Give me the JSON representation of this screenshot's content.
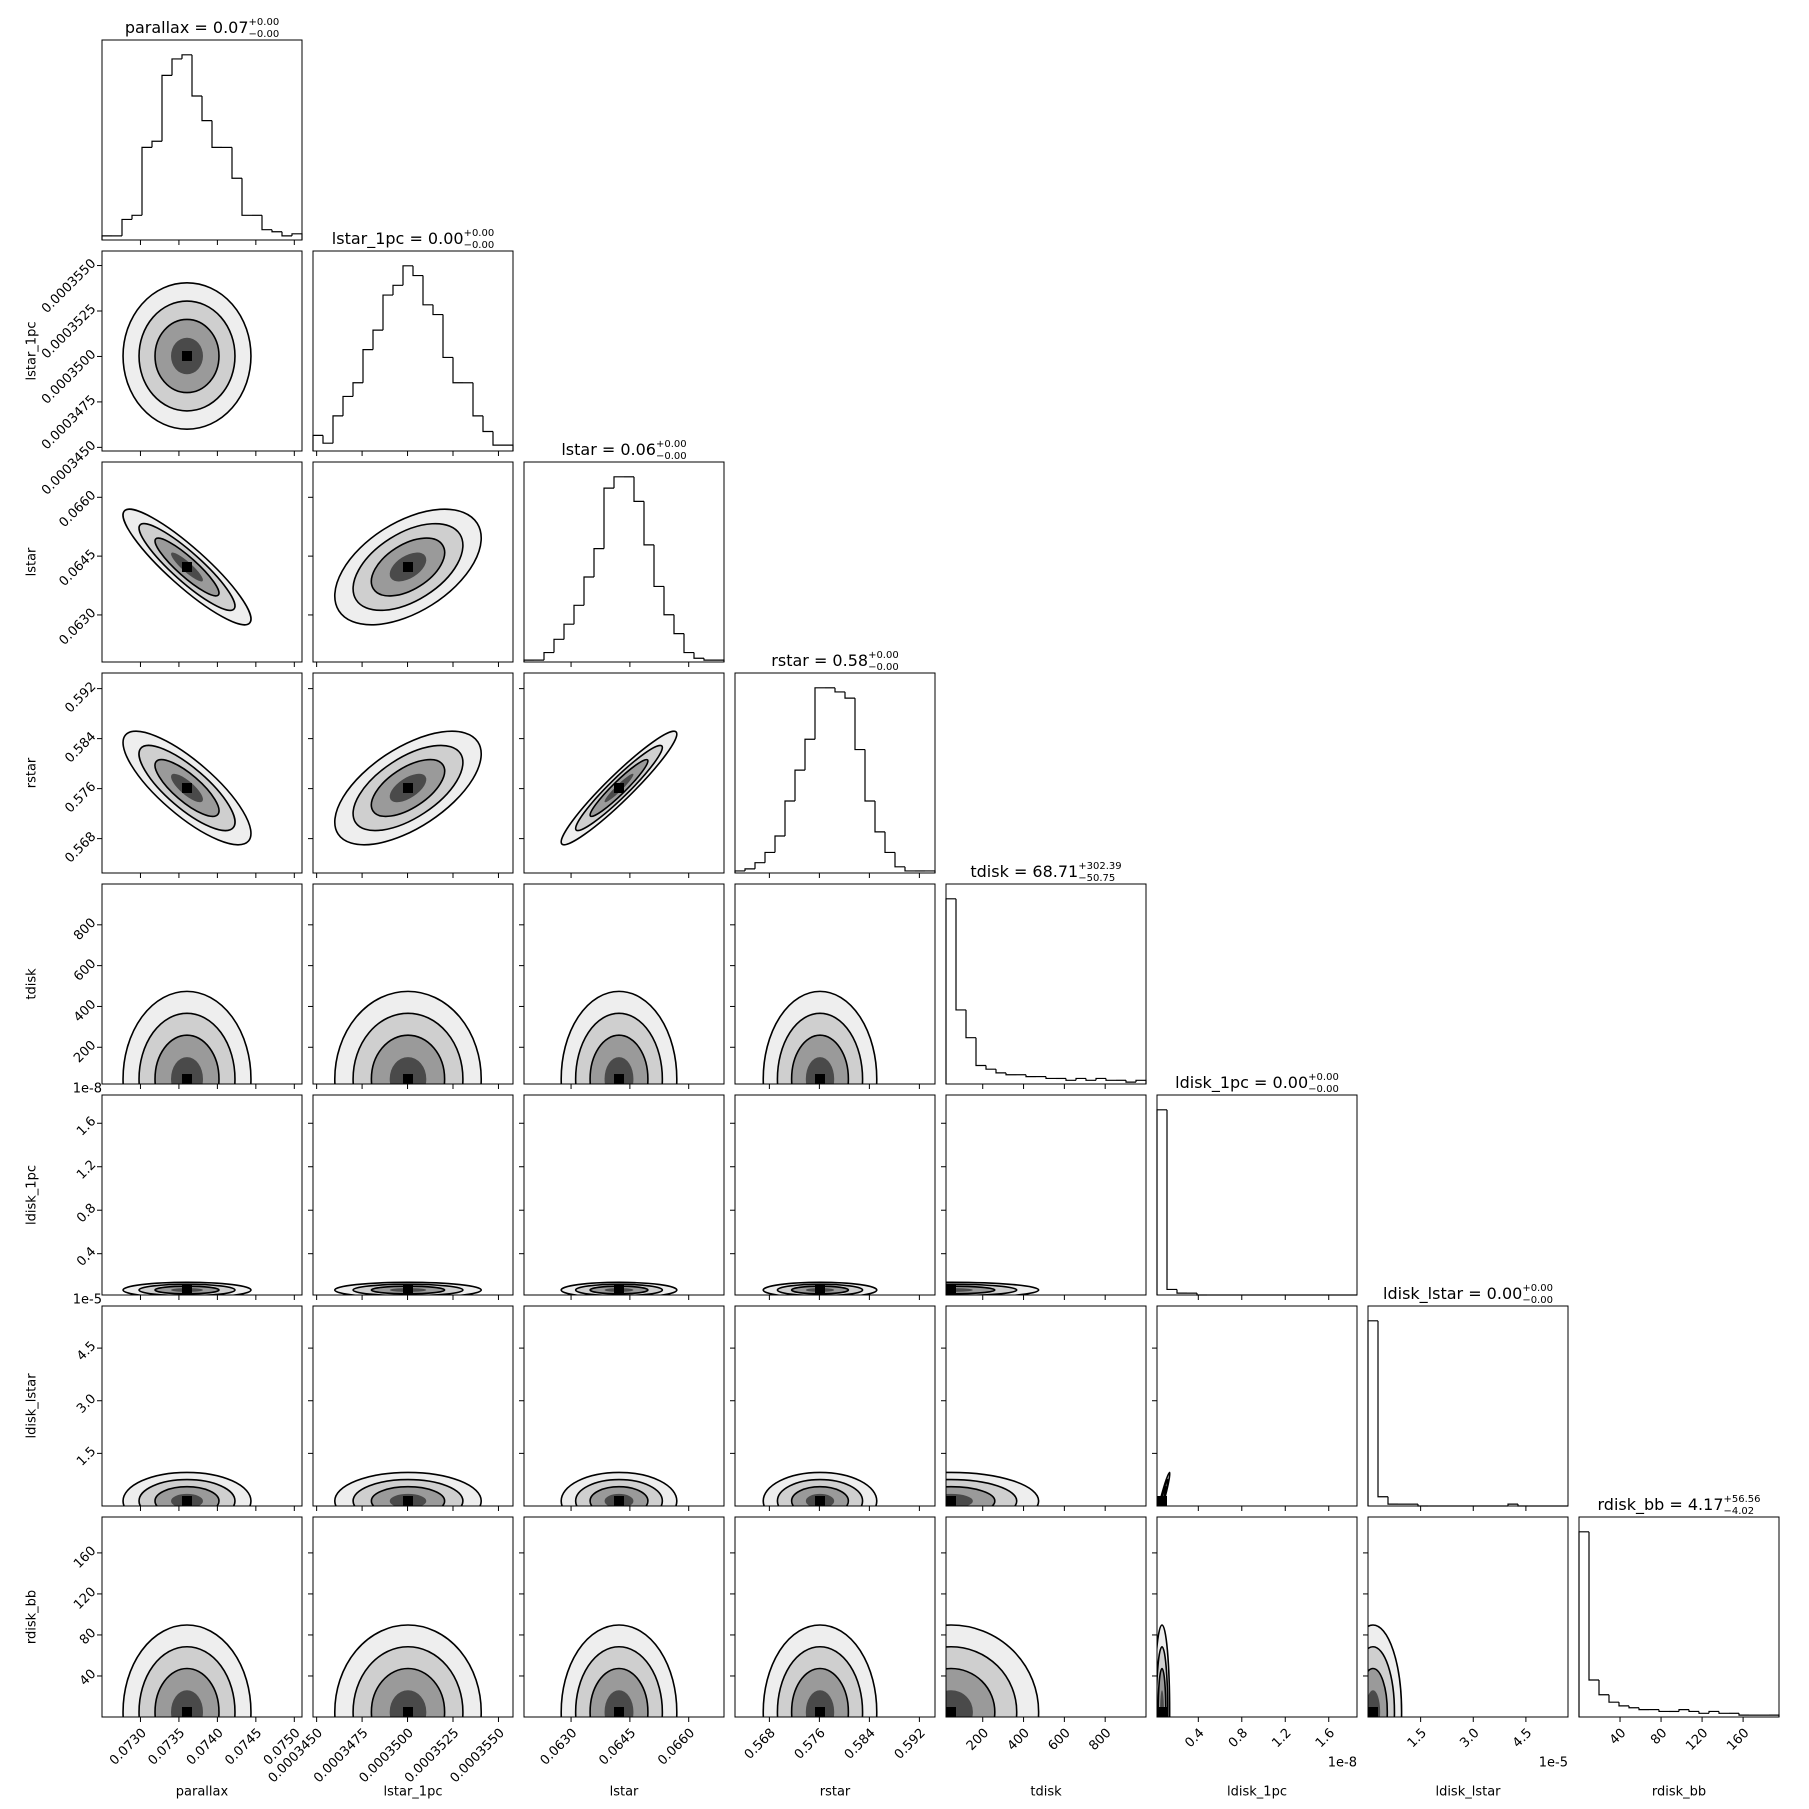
{
  "chart_data": {
    "type": "corner",
    "parameters": [
      {
        "label": "parallax",
        "title": "parallax = 0.07",
        "title_plus": "+0.00",
        "title_minus": "−0.00",
        "lim": [
          0.0725,
          0.0751
        ],
        "ticks": [
          {
            "value": 0.073,
            "label": "0.0730"
          },
          0.0735,
          {
            "value": 0.074,
            "label": "0.0740"
          },
          0.0745,
          {
            "value": 0.075,
            "label": "0.0750"
          }
        ],
        "bins": [
          0.0725,
          0.07263,
          0.07276,
          0.07289,
          0.07302,
          0.07315,
          0.07328,
          0.07341,
          0.07354,
          0.07367,
          0.0738,
          0.07393,
          0.07406,
          0.07419,
          0.07432,
          0.07445,
          0.07458,
          0.07471,
          0.07484,
          0.07497,
          0.0751
        ],
        "counts": [
          2,
          2,
          10,
          12,
          45,
          48,
          80,
          88,
          90,
          70,
          58,
          45,
          45,
          30,
          12,
          12,
          5,
          4,
          2,
          3
        ]
      },
      {
        "label": "lstar_1pc",
        "title": "lstar_1pc = 0.00",
        "title_plus": "+0.00",
        "title_minus": "−0.00",
        "lim": [
          0.0003448,
          0.0003558
        ],
        "ticks": [
          {
            "value": 0.000345,
            "label": "0.0003450"
          },
          0.0003475,
          {
            "value": 0.00035,
            "label": "0.0003500"
          },
          0.0003525,
          {
            "value": 0.000355,
            "label": "0.0003550"
          }
        ],
        "bins": [
          0.0003448,
          0.00034535,
          0.0003459,
          0.00034645,
          0.000347,
          0.00034755,
          0.0003481,
          0.00034865,
          0.0003492,
          0.00034975,
          0.0003503,
          0.00035085,
          0.0003514,
          0.00035195,
          0.0003525,
          0.00035305,
          0.0003536,
          0.00035415,
          0.0003547,
          0.00035525,
          0.0003558
        ],
        "counts": [
          8,
          4,
          18,
          28,
          35,
          52,
          62,
          80,
          85,
          95,
          90,
          75,
          70,
          48,
          35,
          35,
          18,
          10,
          3,
          3
        ]
      },
      {
        "label": "lstar",
        "title": "lstar = 0.06",
        "title_plus": "+0.00",
        "title_minus": "−0.00",
        "lim": [
          0.0618,
          0.0669
        ],
        "ticks": [
          {
            "value": 0.063,
            "label": "0.0630"
          },
          0.0645,
          {
            "value": 0.066,
            "label": "0.0660"
          }
        ],
        "bins": [
          0.0618,
          0.062055,
          0.06231,
          0.062565,
          0.06282,
          0.063075,
          0.06333,
          0.063585,
          0.06384,
          0.064095,
          0.06435,
          0.064605,
          0.06486,
          0.065115,
          0.06537,
          0.065625,
          0.06588,
          0.066135,
          0.06639,
          0.066645,
          0.0669
        ],
        "counts": [
          1,
          1,
          5,
          12,
          20,
          30,
          45,
          60,
          92,
          98,
          98,
          85,
          62,
          40,
          25,
          15,
          5,
          2,
          1,
          1
        ]
      },
      {
        "label": "rstar",
        "title": "rstar = 0.58",
        "title_plus": "+0.00",
        "title_minus": "−0.00",
        "lim": [
          0.5625,
          0.5945
        ],
        "ticks": [
          0.568,
          0.576,
          0.584,
          0.592
        ],
        "bins": [
          0.5625,
          0.5641,
          0.5657,
          0.5673,
          0.5689,
          0.5705,
          0.5721,
          0.5737,
          0.5753,
          0.5769,
          0.5785,
          0.5801,
          0.5817,
          0.5833,
          0.5849,
          0.5865,
          0.5881,
          0.5897,
          0.5913,
          0.5929,
          0.5945
        ],
        "counts": [
          1,
          2,
          5,
          10,
          18,
          35,
          50,
          65,
          90,
          90,
          88,
          85,
          60,
          35,
          20,
          10,
          3,
          1,
          1,
          1
        ]
      },
      {
        "label": "tdisk",
        "title": "tdisk = 68.71",
        "title_plus": "+302.39",
        "title_minus": "−50.75",
        "lim": [
          20,
          1000
        ],
        "ticks": [
          200,
          400,
          600,
          800
        ],
        "bins": [
          20,
          69,
          118,
          167,
          216,
          265,
          314,
          363,
          412,
          461,
          510,
          559,
          608,
          657,
          706,
          755,
          804,
          853,
          902,
          951,
          1000
        ],
        "counts": [
          100,
          40,
          25,
          10,
          8,
          6,
          5,
          5,
          4,
          4,
          3,
          3,
          2,
          3,
          2,
          3,
          2,
          2,
          1,
          2
        ]
      },
      {
        "label": "ldisk_1pc",
        "title": "ldisk_1pc = 0.00",
        "title_plus": "+0.00",
        "title_minus": "−0.00",
        "lim": [
          2e-10,
          1.86e-08
        ],
        "offset_label": "1e-8",
        "ticks": [
          {
            "value": 4e-09,
            "label": "0.4"
          },
          {
            "value": 8e-09,
            "label": "0.8"
          },
          {
            "value": 1.2e-08,
            "label": "1.2"
          },
          {
            "value": 1.6e-08,
            "label": "1.6"
          }
        ],
        "bins": [
          2e-10,
          1.12e-09,
          2.04e-09,
          2.96e-09,
          3.88e-09,
          4.8e-09,
          5.72e-09,
          6.64e-09,
          7.56e-09,
          8.48e-09,
          9.4e-09,
          1.032e-08,
          1.124e-08,
          1.216e-08,
          1.308e-08,
          1.4e-08,
          1.492e-08,
          1.584e-08,
          1.676e-08,
          1.768e-08,
          1.86e-08
        ],
        "counts": [
          100,
          3,
          1,
          1,
          0,
          0,
          0,
          0,
          0,
          0,
          0,
          0,
          0,
          0,
          0,
          0,
          0,
          0,
          0,
          0
        ]
      },
      {
        "label": "ldisk_lstar",
        "title": "ldisk_lstar = 0.00",
        "title_plus": "+0.00",
        "title_minus": "−0.00",
        "lim": [
          0,
          5.7e-05
        ],
        "offset_label": "1e-5",
        "ticks": [
          {
            "value": 1.5e-05,
            "label": "1.5"
          },
          {
            "value": 3e-05,
            "label": "3.0"
          },
          {
            "value": 4.5e-05,
            "label": "4.5"
          }
        ],
        "bins": [
          0,
          2.85e-06,
          5.7e-06,
          8.55e-06,
          1.14e-05,
          1.425e-05,
          1.71e-05,
          1.995e-05,
          2.28e-05,
          2.565e-05,
          2.85e-05,
          3.135e-05,
          3.42e-05,
          3.705e-05,
          3.99e-05,
          4.275e-05,
          4.56e-05,
          4.845e-05,
          5.13e-05,
          5.415e-05,
          5.7e-05
        ],
        "counts": [
          100,
          5,
          1,
          1,
          1,
          0,
          0,
          0,
          0,
          0,
          0,
          0,
          0,
          0,
          1,
          0,
          0,
          0,
          0,
          0
        ]
      },
      {
        "label": "rdisk_bb",
        "title": "rdisk_bb = 4.17",
        "title_plus": "+56.56",
        "title_minus": "−4.02",
        "lim": [
          0,
          195
        ],
        "ticks": [
          40,
          80,
          120,
          160
        ],
        "bins": [
          0,
          9.75,
          19.5,
          29.25,
          39,
          48.75,
          58.5,
          68.25,
          78,
          87.75,
          97.5,
          107.25,
          117,
          126.75,
          136.5,
          146.25,
          156,
          165.75,
          175.5,
          185.25,
          195
        ],
        "counts": [
          100,
          20,
          12,
          8,
          6,
          5,
          4,
          4,
          3,
          3,
          4,
          3,
          2,
          3,
          2,
          2,
          1,
          1,
          1,
          1
        ]
      }
    ],
    "correlations": [
      0,
      -0.9,
      0.5,
      -0.8,
      0.6,
      0.95,
      0,
      0,
      0,
      0,
      0,
      0,
      0,
      0,
      0,
      0,
      0,
      0,
      0,
      0,
      0.99,
      0,
      0,
      0,
      0,
      0,
      0,
      0
    ]
  }
}
